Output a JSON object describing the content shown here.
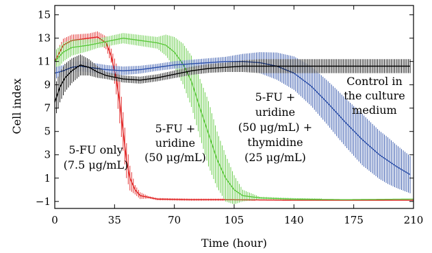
{
  "chart_data": {
    "type": "line",
    "xlabel": "Time (hour)",
    "ylabel": "Cell index",
    "xlim": [
      0,
      210
    ],
    "ylim": [
      -1.6,
      15.8
    ],
    "xticks": [
      0,
      35,
      70,
      105,
      140,
      175,
      210
    ],
    "yticks": [
      -1,
      1,
      3,
      5,
      7,
      9,
      11,
      13,
      15
    ],
    "grid": false,
    "error_bars": true,
    "annotations": [
      {
        "id": "ann-5fu-only",
        "lines": [
          "5-FU only",
          "(7.5 μg/mL)"
        ]
      },
      {
        "id": "ann-5fu-uridine",
        "lines": [
          "5-FU +",
          "uridine",
          "(50 μg/mL)"
        ]
      },
      {
        "id": "ann-5fu-uridine-thymidine",
        "lines": [
          "5-FU +",
          "uridine",
          "(50 μg/mL) +",
          "thymidine",
          "(25 μg/mL)"
        ]
      },
      {
        "id": "ann-control",
        "lines": [
          "Control in",
          "the culture",
          "medium"
        ]
      }
    ],
    "series": [
      {
        "id": "5fu-only",
        "color": "#e02020",
        "points": [
          [
            0,
            11.0
          ],
          [
            5,
            12.4
          ],
          [
            10,
            12.8
          ],
          [
            15,
            12.9
          ],
          [
            20,
            13.0
          ],
          [
            25,
            13.1
          ],
          [
            30,
            12.6
          ],
          [
            33,
            11.5
          ],
          [
            36,
            9.5
          ],
          [
            38,
            7.5
          ],
          [
            40,
            5.0
          ],
          [
            42,
            2.5
          ],
          [
            44,
            1.0
          ],
          [
            47,
            0.0
          ],
          [
            50,
            -0.5
          ],
          [
            60,
            -0.8
          ],
          [
            80,
            -0.85
          ],
          [
            100,
            -0.85
          ],
          [
            140,
            -0.9
          ],
          [
            180,
            -0.9
          ],
          [
            210,
            -0.9
          ]
        ],
        "err": [
          [
            0,
            0.6
          ],
          [
            20,
            0.4
          ],
          [
            33,
            0.6
          ],
          [
            38,
            1.8
          ],
          [
            42,
            1.5
          ],
          [
            47,
            0.4
          ],
          [
            55,
            0.1
          ],
          [
            210,
            0.05
          ]
        ]
      },
      {
        "id": "5fu-uridine",
        "color": "#5cc83c",
        "points": [
          [
            0,
            11.0
          ],
          [
            5,
            11.8
          ],
          [
            10,
            12.2
          ],
          [
            20,
            12.4
          ],
          [
            30,
            12.7
          ],
          [
            40,
            13.0
          ],
          [
            50,
            12.8
          ],
          [
            60,
            12.6
          ],
          [
            65,
            12.4
          ],
          [
            70,
            11.8
          ],
          [
            75,
            10.8
          ],
          [
            80,
            9.3
          ],
          [
            85,
            7.0
          ],
          [
            90,
            4.8
          ],
          [
            95,
            2.6
          ],
          [
            100,
            1.0
          ],
          [
            105,
            0.0
          ],
          [
            110,
            -0.5
          ],
          [
            120,
            -0.7
          ],
          [
            140,
            -0.8
          ],
          [
            170,
            -0.85
          ],
          [
            210,
            -0.8
          ]
        ],
        "err": [
          [
            0,
            0.9
          ],
          [
            25,
            0.4
          ],
          [
            60,
            0.5
          ],
          [
            70,
            1.3
          ],
          [
            80,
            2.2
          ],
          [
            90,
            2.8
          ],
          [
            100,
            2.0
          ],
          [
            110,
            0.5
          ],
          [
            120,
            0.1
          ],
          [
            210,
            0.05
          ]
        ]
      },
      {
        "id": "5fu-uridine-thymidine",
        "color": "#2a4ea8",
        "points": [
          [
            0,
            10.0
          ],
          [
            5,
            10.2
          ],
          [
            10,
            10.5
          ],
          [
            15,
            10.6
          ],
          [
            20,
            10.5
          ],
          [
            30,
            10.3
          ],
          [
            40,
            10.2
          ],
          [
            50,
            10.3
          ],
          [
            60,
            10.5
          ],
          [
            70,
            10.7
          ],
          [
            80,
            10.8
          ],
          [
            90,
            10.9
          ],
          [
            100,
            11.0
          ],
          [
            110,
            11.0
          ],
          [
            120,
            10.9
          ],
          [
            130,
            10.6
          ],
          [
            140,
            10.0
          ],
          [
            150,
            8.9
          ],
          [
            160,
            7.4
          ],
          [
            170,
            5.8
          ],
          [
            180,
            4.3
          ],
          [
            190,
            3.0
          ],
          [
            200,
            2.0
          ],
          [
            208,
            1.3
          ]
        ],
        "err": [
          [
            0,
            0.5
          ],
          [
            60,
            0.3
          ],
          [
            100,
            0.4
          ],
          [
            120,
            0.9
          ],
          [
            135,
            1.3
          ],
          [
            150,
            1.7
          ],
          [
            165,
            2.0
          ],
          [
            180,
            2.2
          ],
          [
            195,
            2.0
          ],
          [
            208,
            1.6
          ]
        ]
      },
      {
        "id": "control",
        "color": "#000000",
        "points": [
          [
            0,
            7.5
          ],
          [
            3,
            8.8
          ],
          [
            6,
            9.6
          ],
          [
            10,
            10.2
          ],
          [
            15,
            10.7
          ],
          [
            20,
            10.5
          ],
          [
            25,
            10.1
          ],
          [
            30,
            9.8
          ],
          [
            40,
            9.5
          ],
          [
            50,
            9.4
          ],
          [
            60,
            9.6
          ],
          [
            70,
            9.9
          ],
          [
            80,
            10.2
          ],
          [
            90,
            10.4
          ],
          [
            100,
            10.5
          ],
          [
            110,
            10.6
          ],
          [
            120,
            10.6
          ],
          [
            140,
            10.6
          ],
          [
            175,
            10.6
          ],
          [
            208,
            10.6
          ]
        ],
        "err": [
          [
            0,
            1.4
          ],
          [
            6,
            1.2
          ],
          [
            15,
            0.9
          ],
          [
            30,
            0.3
          ],
          [
            60,
            0.3
          ],
          [
            100,
            0.4
          ],
          [
            120,
            0.6
          ],
          [
            208,
            0.6
          ]
        ]
      }
    ]
  }
}
